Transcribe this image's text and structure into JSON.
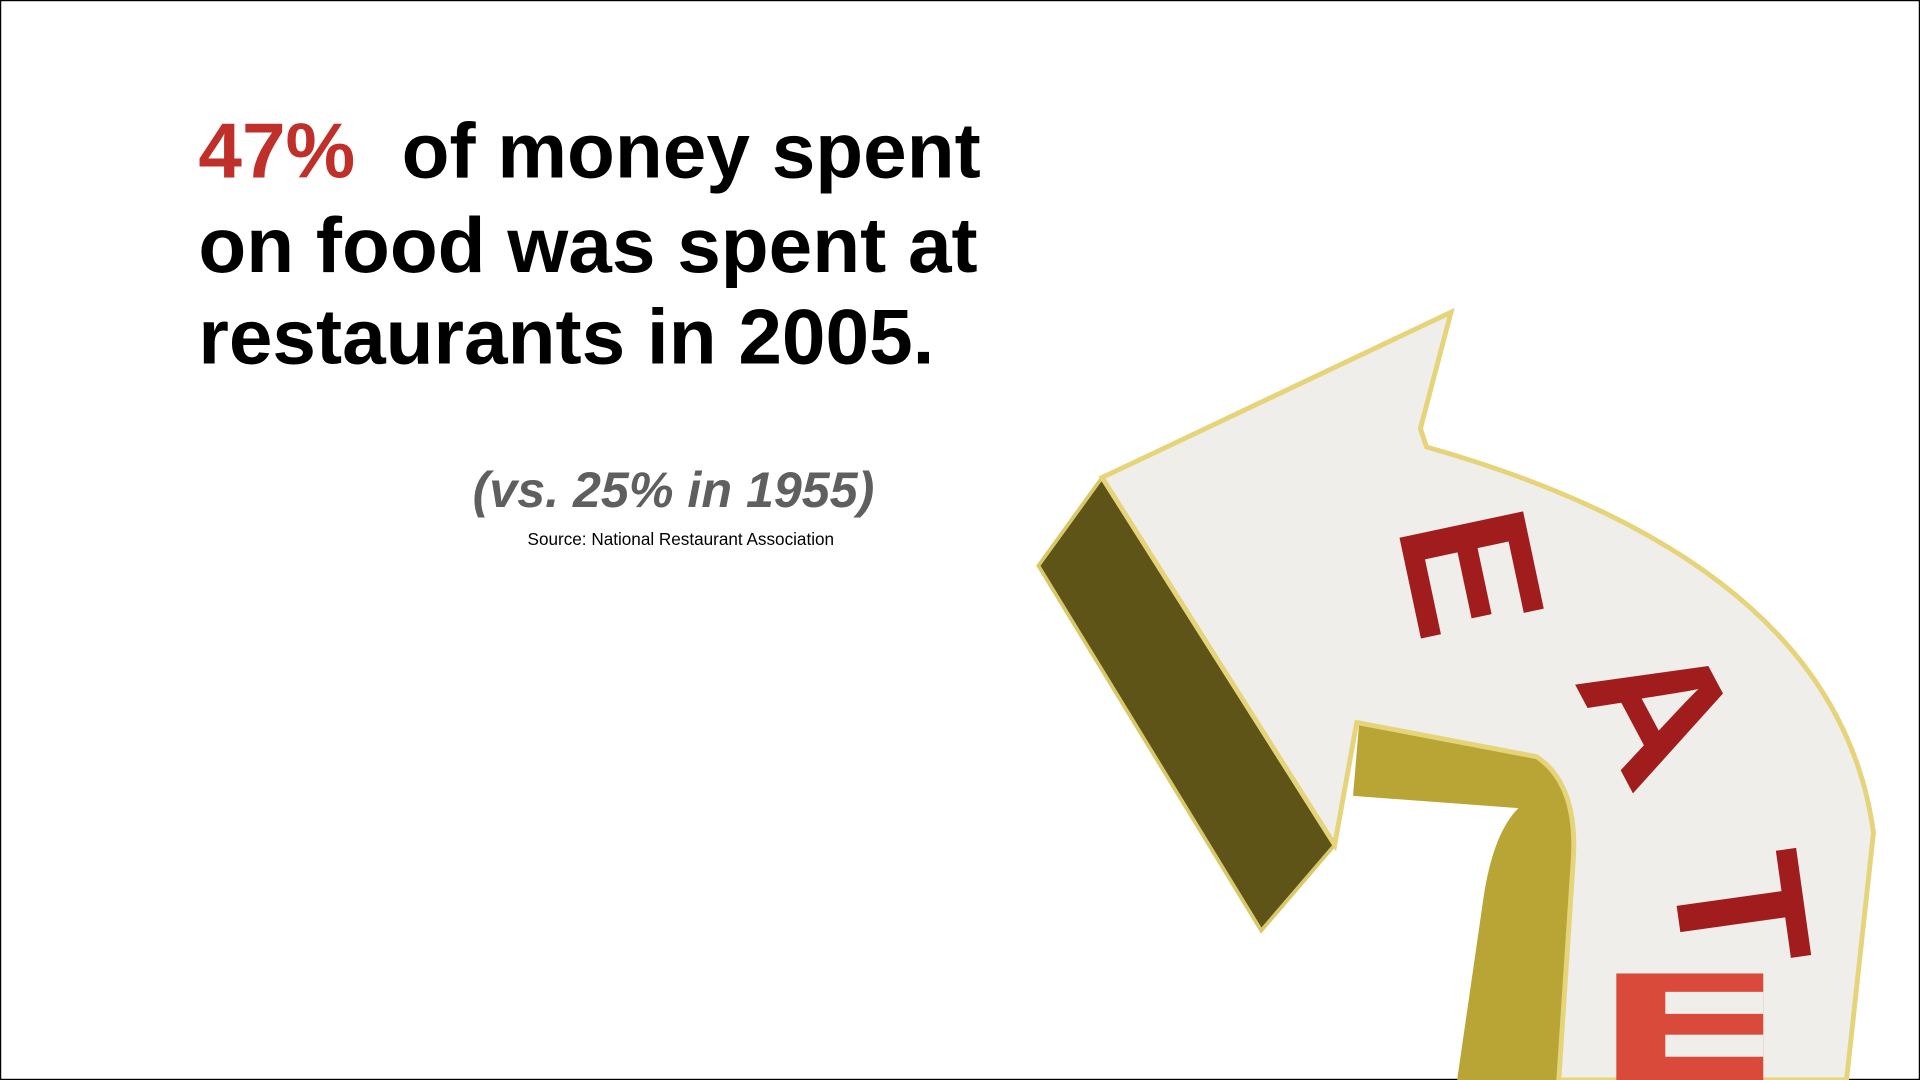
{
  "headline": {
    "highlight": "47%",
    "lines": [
      "of money spent",
      "on food was spent at",
      "restaurants in 2005."
    ]
  },
  "comparison": "(vs. 25% in 1955)",
  "source": "Source: National Restaurant Association",
  "sign": {
    "letters": [
      "E",
      "A",
      "T"
    ]
  }
}
